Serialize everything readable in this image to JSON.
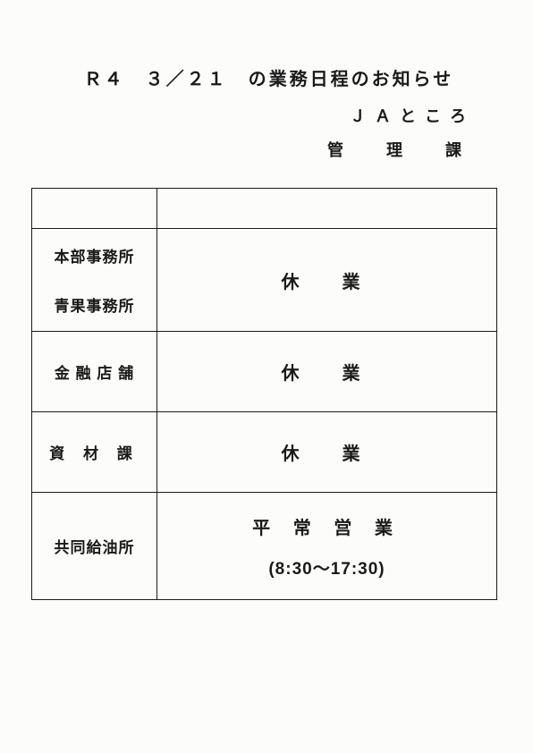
{
  "header": {
    "title": "Ｒ４　３／２１　の業務日程のお知らせ",
    "organization": "ＪＡところ",
    "department": "管　理　課"
  },
  "table": {
    "border_color": "#1a1a1a",
    "rows": [
      {
        "label1": "本部事務所",
        "label2": "青果事務所",
        "status": "休　業"
      },
      {
        "label": "金 融 店 舗",
        "status": "休　業"
      },
      {
        "label": "資 材 課",
        "status": "休　業"
      },
      {
        "label": "共同給油所",
        "status": "平 常 営 業",
        "hours": "(8:30～17:30)"
      }
    ]
  },
  "styles": {
    "background_color": "#fcfcfa",
    "text_color": "#1a1a1a",
    "title_fontsize": 20,
    "label_fontsize": 17,
    "status_fontsize": 20
  }
}
